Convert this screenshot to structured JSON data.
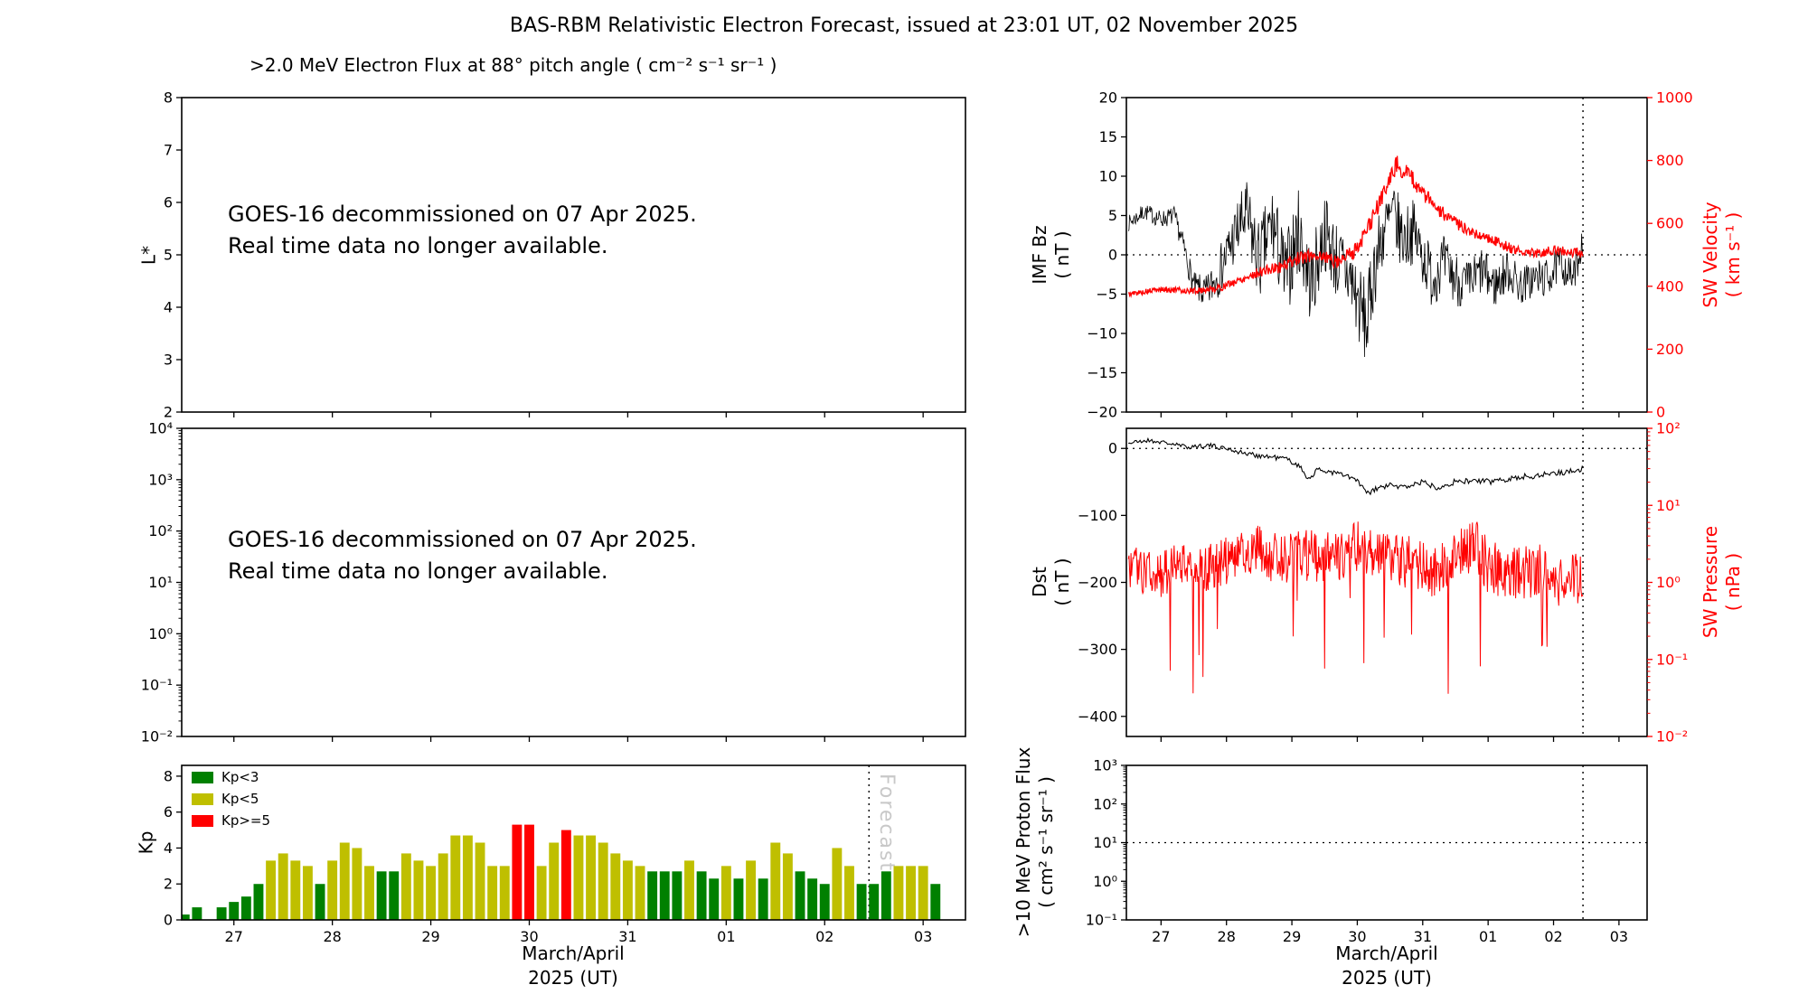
{
  "title": "BAS-RBM Relativistic Electron Forecast, issued at 23:01 UT, 02 November 2025",
  "colors": {
    "black": "#000000",
    "red": "#ff0000",
    "kp_green": "#008000",
    "kp_yellow": "#bfbf00",
    "kp_red": "#ff0000",
    "watermark_gray": "#c3c3c3"
  },
  "x_axis": {
    "lo": 26.47,
    "hi": 34.43,
    "ticks": [
      27,
      28,
      29,
      30,
      31,
      32,
      33,
      34
    ],
    "tick_labels": [
      "27",
      "28",
      "29",
      "30",
      "31",
      "01",
      "02",
      "03"
    ],
    "label_line1": "March/April",
    "label_line2": "2025 (UT)",
    "forecast_line_t": 33.45
  },
  "chart_data": {
    "panels": [
      {
        "id": "electron-flux",
        "type": "line",
        "title": ">2.0 MeV Electron Flux at 88° pitch angle ( cm⁻² s⁻¹ sr⁻¹ )",
        "ylabel_left_lines": [
          "L*"
        ],
        "yaxis_left": {
          "lo": 2,
          "hi": 8,
          "type": "linear",
          "ticks": [
            2,
            3,
            4,
            5,
            6,
            7,
            8
          ],
          "tick_labels": [
            "2",
            "3",
            "4",
            "5",
            "6",
            "7",
            "8"
          ]
        },
        "notice": [
          "GOES-16 decommissioned on 07 Apr 2025.",
          "Real time data no longer available."
        ],
        "series": [],
        "show_x_labels": false,
        "forecast_line": false
      },
      {
        "id": "electron-flux-log",
        "type": "line",
        "yaxis_left": {
          "lo": -2,
          "hi": 4,
          "type": "log",
          "ticks": [
            -2,
            -1,
            0,
            1,
            2,
            3,
            4
          ],
          "tick_labels": [
            "10⁻²",
            "10⁻¹",
            "10⁰",
            "10¹",
            "10²",
            "10³",
            "10⁴"
          ]
        },
        "notice": [
          "GOES-16 decommissioned on 07 Apr 2025.",
          "Real time data no longer available."
        ],
        "series": [],
        "show_x_labels": false,
        "forecast_line": false
      },
      {
        "id": "kp",
        "type": "bar",
        "ylabel_left_lines": [
          "Kp"
        ],
        "yaxis_left": {
          "lo": 0,
          "hi": 8.6,
          "type": "linear",
          "ticks": [
            0,
            2,
            4,
            6,
            8
          ],
          "tick_labels": [
            "0",
            "2",
            "4",
            "6",
            "8"
          ]
        },
        "bars": {
          "start": 26.5,
          "step": 0.125,
          "width": 0.1,
          "values": [
            0.3,
            0.7,
            null,
            0.7,
            1.0,
            1.3,
            2.0,
            3.3,
            3.7,
            3.3,
            3.0,
            2.0,
            3.3,
            4.3,
            4.0,
            3.0,
            2.7,
            2.7,
            3.7,
            3.3,
            3.0,
            3.7,
            4.7,
            4.7,
            4.3,
            3.0,
            3.0,
            5.3,
            5.3,
            3.0,
            4.3,
            5.0,
            4.7,
            4.7,
            4.3,
            3.7,
            3.3,
            3.0,
            2.7,
            2.7,
            2.7,
            3.3,
            2.7,
            2.3,
            3.0,
            2.3,
            3.3,
            2.3,
            4.3,
            3.7,
            2.7,
            2.3,
            2.0,
            4.0,
            3.0,
            2.0,
            2.0,
            2.7,
            3.0,
            3.0,
            3.0,
            2.0
          ]
        },
        "thresholds": {
          "low": 3,
          "high": 5
        },
        "bar_colors": {
          "low": "#008000",
          "mid": "#bfbf00",
          "high": "#ff0000"
        },
        "legend": [
          {
            "label": "Kp<3",
            "color": "#008000"
          },
          {
            "label": "Kp<5",
            "color": "#bfbf00"
          },
          {
            "label": "Kp>=5",
            "color": "#ff0000"
          }
        ],
        "watermark": "Forecast",
        "show_x_labels": true,
        "forecast_line": true
      },
      {
        "id": "imf-sw-velocity",
        "type": "line",
        "ylabel_left_lines": [
          "IMF Bz",
          "( nT )"
        ],
        "ylabel_right_lines": [
          "SW Velocity",
          "( km s⁻¹ )"
        ],
        "yaxis_left": {
          "lo": -20,
          "hi": 20,
          "type": "linear",
          "ticks": [
            -20,
            -15,
            -10,
            -5,
            0,
            5,
            10,
            15,
            20
          ],
          "tick_labels": [
            "−20",
            "−15",
            "−10",
            "−5",
            "0",
            "5",
            "10",
            "15",
            "20"
          ]
        },
        "yaxis_right": {
          "lo": 0,
          "hi": 1000,
          "type": "linear",
          "ticks": [
            0,
            200,
            400,
            600,
            800,
            1000
          ],
          "tick_labels": [
            "0",
            "200",
            "400",
            "600",
            "800",
            "1000"
          ],
          "color": "#ff0000"
        },
        "hline": 0,
        "series": [
          {
            "name": "IMF Bz",
            "axis": "left",
            "color": "#000000",
            "width": 0.8,
            "seed": 7,
            "dt": 0.01,
            "anchors": [
              [
                26.5,
                4
              ],
              [
                26.75,
                5.5
              ],
              [
                27.0,
                4.5
              ],
              [
                27.2,
                5
              ],
              [
                27.35,
                1
              ],
              [
                27.5,
                -4
              ],
              [
                27.7,
                -5
              ],
              [
                27.9,
                -2
              ],
              [
                28.1,
                2
              ],
              [
                28.3,
                5
              ],
              [
                28.5,
                -1
              ],
              [
                28.7,
                4
              ],
              [
                28.9,
                -3
              ],
              [
                29.1,
                3
              ],
              [
                29.3,
                -4
              ],
              [
                29.5,
                3
              ],
              [
                29.7,
                -1
              ],
              [
                29.9,
                -3
              ],
              [
                30.05,
                -7
              ],
              [
                30.15,
                -9
              ],
              [
                30.25,
                -2
              ],
              [
                30.4,
                3
              ],
              [
                30.55,
                5
              ],
              [
                30.7,
                2
              ],
              [
                30.85,
                3
              ],
              [
                31.0,
                0
              ],
              [
                31.15,
                -3
              ],
              [
                31.3,
                -1
              ],
              [
                31.5,
                -3
              ],
              [
                31.7,
                -4
              ],
              [
                31.9,
                -2
              ],
              [
                32.1,
                -4
              ],
              [
                32.3,
                -2
              ],
              [
                32.5,
                -4
              ],
              [
                32.7,
                -3
              ],
              [
                32.9,
                -3
              ],
              [
                33.1,
                -1
              ],
              [
                33.3,
                -3
              ],
              [
                33.45,
                2
              ]
            ],
            "noise": [
              [
                26.5,
                1
              ],
              [
                27.2,
                1.2
              ],
              [
                27.6,
                2
              ],
              [
                28.0,
                3.5
              ],
              [
                28.4,
                5
              ],
              [
                29.0,
                5.5
              ],
              [
                29.6,
                5
              ],
              [
                30.1,
                5.5
              ],
              [
                30.5,
                4.5
              ],
              [
                31.0,
                4
              ],
              [
                31.5,
                3.5
              ],
              [
                32.0,
                3
              ],
              [
                32.5,
                2.5
              ],
              [
                33.0,
                2.5
              ],
              [
                33.45,
                2
              ]
            ]
          },
          {
            "name": "SW Velocity",
            "axis": "right",
            "color": "#ff0000",
            "width": 1.3,
            "seed": 5,
            "dt": 0.01,
            "anchors": [
              [
                26.5,
                375
              ],
              [
                27.0,
                390
              ],
              [
                27.5,
                385
              ],
              [
                27.9,
                395
              ],
              [
                28.2,
                420
              ],
              [
                28.5,
                445
              ],
              [
                28.8,
                460
              ],
              [
                29.1,
                490
              ],
              [
                29.4,
                500
              ],
              [
                29.7,
                480
              ],
              [
                30.0,
                520
              ],
              [
                30.2,
                600
              ],
              [
                30.45,
                720
              ],
              [
                30.6,
                790
              ],
              [
                30.8,
                750
              ],
              [
                31.0,
                700
              ],
              [
                31.2,
                650
              ],
              [
                31.5,
                600
              ],
              [
                31.8,
                570
              ],
              [
                32.1,
                545
              ],
              [
                32.4,
                515
              ],
              [
                32.7,
                505
              ],
              [
                33.0,
                515
              ],
              [
                33.2,
                510
              ],
              [
                33.45,
                505
              ]
            ],
            "noise": [
              [
                26.5,
                8
              ],
              [
                28.0,
                12
              ],
              [
                29.0,
                20
              ],
              [
                30.0,
                25
              ],
              [
                30.6,
                30
              ],
              [
                31.5,
                20
              ],
              [
                32.5,
                15
              ],
              [
                33.45,
                15
              ]
            ]
          }
        ],
        "show_x_labels": false,
        "forecast_line": true
      },
      {
        "id": "dst-sw-pressure",
        "type": "line",
        "ylabel_left_lines": [
          "Dst",
          "( nT )"
        ],
        "ylabel_right_lines": [
          "SW Pressure",
          "( nPa )"
        ],
        "yaxis_left": {
          "lo": -430,
          "hi": 30,
          "type": "linear",
          "ticks": [
            -400,
            -300,
            -200,
            -100,
            0
          ],
          "tick_labels": [
            "−400",
            "−300",
            "−200",
            "−100",
            "0"
          ]
        },
        "yaxis_right": {
          "lo": -2,
          "hi": 2,
          "type": "log",
          "ticks": [
            -2,
            -1,
            0,
            1,
            2
          ],
          "tick_labels": [
            "10⁻²",
            "10⁻¹",
            "10⁰",
            "10¹",
            "10²"
          ],
          "color": "#ff0000"
        },
        "hline": 0,
        "series": [
          {
            "name": "Dst",
            "axis": "left",
            "color": "#000000",
            "width": 1.1,
            "seed": 21,
            "dt": 0.02,
            "anchors": [
              [
                26.5,
                8
              ],
              [
                26.8,
                12
              ],
              [
                27.1,
                8
              ],
              [
                27.4,
                2
              ],
              [
                27.7,
                5
              ],
              [
                28.0,
                0
              ],
              [
                28.3,
                -8
              ],
              [
                28.6,
                -12
              ],
              [
                28.9,
                -15
              ],
              [
                29.1,
                -25
              ],
              [
                29.25,
                -45
              ],
              [
                29.4,
                -32
              ],
              [
                29.6,
                -35
              ],
              [
                29.8,
                -40
              ],
              [
                30.0,
                -48
              ],
              [
                30.15,
                -68
              ],
              [
                30.3,
                -60
              ],
              [
                30.5,
                -55
              ],
              [
                30.7,
                -58
              ],
              [
                31.0,
                -50
              ],
              [
                31.2,
                -58
              ],
              [
                31.5,
                -50
              ],
              [
                31.8,
                -48
              ],
              [
                32.0,
                -50
              ],
              [
                32.3,
                -45
              ],
              [
                32.6,
                -42
              ],
              [
                32.9,
                -38
              ],
              [
                33.2,
                -35
              ],
              [
                33.45,
                -30
              ]
            ],
            "noise": [
              [
                26.5,
                3
              ],
              [
                29.0,
                4
              ],
              [
                33.45,
                5
              ]
            ]
          },
          {
            "name": "SW Pressure",
            "axis": "right",
            "color": "#ff0000",
            "width": 1.0,
            "seed": 31,
            "dt": 0.01,
            "spikes": {
              "prob": 0.03,
              "depth": 1.6
            },
            "anchors": [
              [
                26.5,
                0.2
              ],
              [
                27.0,
                0.1
              ],
              [
                27.3,
                0.3
              ],
              [
                27.6,
                0.15
              ],
              [
                28.0,
                0.3
              ],
              [
                28.4,
                0.45
              ],
              [
                28.8,
                0.3
              ],
              [
                29.2,
                0.35
              ],
              [
                29.6,
                0.3
              ],
              [
                30.0,
                0.45
              ],
              [
                30.4,
                0.3
              ],
              [
                30.8,
                0.25
              ],
              [
                31.2,
                0.1
              ],
              [
                31.5,
                0.3
              ],
              [
                31.8,
                0.5
              ],
              [
                32.0,
                0.2
              ],
              [
                32.4,
                0.1
              ],
              [
                32.8,
                0.15
              ],
              [
                33.2,
                0.0
              ],
              [
                33.45,
                0.1
              ]
            ],
            "noise": [
              [
                26.5,
                0.3
              ],
              [
                30.0,
                0.35
              ],
              [
                33.45,
                0.35
              ]
            ]
          }
        ],
        "show_x_labels": false,
        "forecast_line": true
      },
      {
        "id": "proton-flux",
        "type": "line",
        "ylabel_left_lines": [
          ">10 MeV Proton Flux",
          "( cm² s⁻¹ sr⁻¹ )"
        ],
        "yaxis_left": {
          "lo": -1,
          "hi": 3,
          "type": "log",
          "ticks": [
            -1,
            0,
            1,
            2,
            3
          ],
          "tick_labels": [
            "10⁻¹",
            "10⁰",
            "10¹",
            "10²",
            "10³"
          ]
        },
        "hline": 1,
        "series": [],
        "show_x_labels": true,
        "forecast_line": true
      }
    ]
  }
}
